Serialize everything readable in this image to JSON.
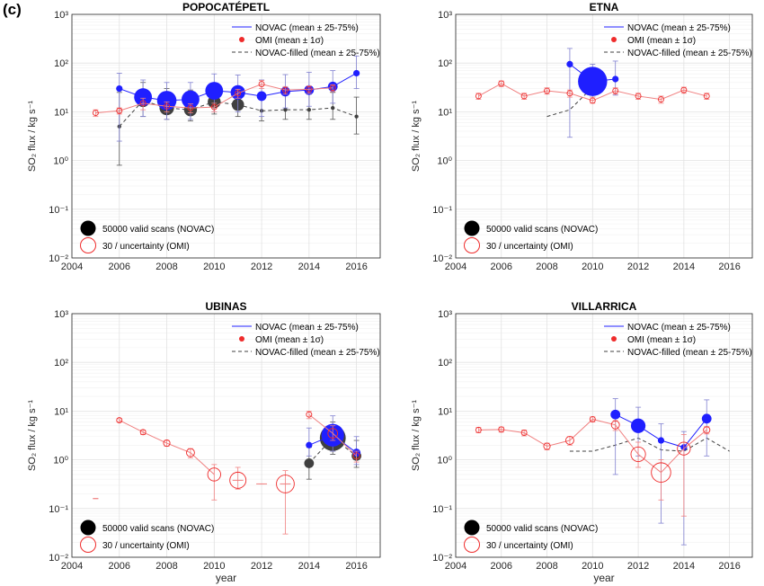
{
  "figure": {
    "panel_label": "(c)"
  },
  "colors": {
    "novac": "#1f1fff",
    "omi": "#ef2b2b",
    "omi_light": "#f08080",
    "filled": "#404040",
    "grid": "#e2e2e2"
  },
  "chart_data": [
    {
      "type": "line",
      "title": "POPOCATÉPETL",
      "xlabel": "",
      "ylabel": "SO₂ flux / kg s⁻¹",
      "x_ticks": [
        "2004",
        "2006",
        "2008",
        "2010",
        "2012",
        "2014",
        "2016"
      ],
      "y_ticks": [
        "10⁻²",
        "10⁻¹",
        "10⁰",
        "10¹",
        "10²",
        "10³"
      ],
      "xlim": [
        2004,
        2017
      ],
      "ylim": [
        0.01,
        1000
      ],
      "yscale": "log",
      "grid": true,
      "legend_top": [
        "NOVAC (mean ± 25-75%)",
        "OMI (mean ± 1σ)",
        "NOVAC-filled (mean ± 25-75%)"
      ],
      "legend_bottom": [
        "50000 valid scans (NOVAC)",
        "30 / uncertainty (OMI)"
      ],
      "series": [
        {
          "kind": "novac",
          "x": [
            2006,
            2007,
            2008,
            2009,
            2010,
            2011,
            2012,
            2013,
            2014,
            2015,
            2016
          ],
          "y": [
            30,
            20,
            17,
            18,
            27,
            25,
            21,
            26,
            28,
            33,
            62
          ],
          "lo": [
            2.5,
            8,
            7,
            7,
            10,
            10,
            8,
            12,
            13,
            15,
            30
          ],
          "hi": [
            62,
            45,
            40,
            40,
            60,
            57,
            45,
            58,
            65,
            70,
            140
          ],
          "size": [
            0.2,
            0.55,
            0.6,
            0.55,
            0.55,
            0.45,
            0.3,
            0.3,
            0.3,
            0.3,
            0.2
          ]
        },
        {
          "kind": "omi",
          "x": [
            2005,
            2006,
            2007,
            2008,
            2009,
            2010,
            2011,
            2012,
            2013,
            2014,
            2015
          ],
          "y": [
            9.5,
            10.5,
            15,
            13,
            12,
            12.5,
            24,
            37,
            28,
            29,
            31
          ],
          "lo": [
            8,
            9,
            11,
            10,
            9.5,
            10,
            19,
            30,
            23,
            24,
            26
          ],
          "hi": [
            11,
            12,
            19,
            16,
            14.5,
            15,
            29,
            44,
            33,
            34,
            36
          ],
          "size": [
            0.15,
            0.15,
            0.15,
            0.15,
            0.15,
            0.15,
            0.15,
            0.15,
            0.15,
            0.15,
            0.15
          ]
        },
        {
          "kind": "filled",
          "x": [
            2006,
            2007,
            2008,
            2009,
            2010,
            2011,
            2012,
            2013,
            2014,
            2015,
            2016
          ],
          "y": [
            5,
            17,
            12,
            11,
            16,
            14,
            10.5,
            11,
            11,
            12,
            8
          ],
          "lo": [
            0.8,
            8,
            7,
            6.5,
            9,
            8,
            6.5,
            7,
            7,
            7,
            3.5
          ],
          "hi": [
            25,
            40,
            30,
            28,
            35,
            30,
            22,
            23,
            23,
            25,
            20
          ],
          "size": [
            0.12,
            0.4,
            0.45,
            0.4,
            0.4,
            0.38,
            0.12,
            0.12,
            0.12,
            0.12,
            0.12
          ]
        }
      ]
    },
    {
      "type": "line",
      "title": "ETNA",
      "xlabel": "",
      "ylabel": "SO₂ flux / kg s⁻¹",
      "x_ticks": [
        "2004",
        "2006",
        "2008",
        "2010",
        "2012",
        "2014",
        "2016"
      ],
      "y_ticks": [
        "10⁻²",
        "10⁻¹",
        "10⁰",
        "10¹",
        "10²",
        "10³"
      ],
      "xlim": [
        2004,
        2017
      ],
      "ylim": [
        0.01,
        1000
      ],
      "yscale": "log",
      "grid": true,
      "legend_top": [
        "NOVAC (mean ± 25-75%)",
        "OMI (mean ± 1σ)",
        "NOVAC-filled (mean ± 25-75%)"
      ],
      "legend_bottom": [
        "50000 valid scans (NOVAC)",
        "30 / uncertainty (OMI)"
      ],
      "series": [
        {
          "kind": "novac",
          "x": [
            2009,
            2010,
            2011
          ],
          "y": [
            95,
            42,
            47
          ],
          "lo": [
            3,
            20,
            22
          ],
          "hi": [
            200,
            95,
            110
          ],
          "size": [
            0.2,
            0.9,
            0.2
          ]
        },
        {
          "kind": "omi",
          "x": [
            2005,
            2006,
            2007,
            2008,
            2009,
            2010,
            2011,
            2012,
            2013,
            2014,
            2015
          ],
          "y": [
            21,
            38,
            21,
            27,
            24,
            17,
            27,
            21,
            18,
            28,
            21
          ],
          "lo": [
            18,
            33,
            18,
            23,
            20,
            15,
            23,
            18,
            15,
            24,
            18
          ],
          "hi": [
            24,
            43,
            24,
            31,
            28,
            20,
            31,
            24,
            21,
            32,
            24
          ],
          "size": [
            0.15,
            0.15,
            0.15,
            0.15,
            0.15,
            0.15,
            0.15,
            0.15,
            0.15,
            0.15,
            0.15
          ]
        },
        {
          "kind": "filled",
          "x": [
            2008,
            2009,
            2010
          ],
          "y": [
            8,
            11,
            32
          ],
          "lo": [],
          "hi": [],
          "size": []
        }
      ]
    },
    {
      "type": "line",
      "title": "UBINAS",
      "xlabel": "year",
      "ylabel": "SO₂ flux / kg s⁻¹",
      "x_ticks": [
        "2004",
        "2006",
        "2008",
        "2010",
        "2012",
        "2014",
        "2016"
      ],
      "y_ticks": [
        "10⁻²",
        "10⁻¹",
        "10⁰",
        "10¹",
        "10²",
        "10³"
      ],
      "xlim": [
        2004,
        2017
      ],
      "ylim": [
        0.01,
        1000
      ],
      "yscale": "log",
      "grid": true,
      "legend_top": [
        "NOVAC (mean ± 25-75%)",
        "OMI (mean ± 1σ)",
        "NOVAC-filled (mean ± 25-75%)"
      ],
      "legend_bottom": [
        "50000 valid scans (NOVAC)",
        "30 / uncertainty (OMI)"
      ],
      "series": [
        {
          "kind": "novac",
          "x": [
            2014,
            2015,
            2016
          ],
          "y": [
            2,
            3.2,
            1.4
          ],
          "lo": [
            1.2,
            1.5,
            0.8
          ],
          "hi": [
            4.5,
            8,
            3
          ],
          "size": [
            0.2,
            0.7,
            0.25
          ]
        },
        {
          "kind": "omi",
          "x": [
            2005,
            2006,
            2007,
            2008,
            2009,
            2010,
            2011,
            2012,
            2013,
            2014,
            2015,
            2016
          ],
          "y": [
            0.16,
            6.5,
            3.7,
            2.2,
            1.4,
            0.5,
            0.38,
            0.32,
            0.32,
            8.5,
            3.5,
            1.2
          ],
          "lo": [
            0.16,
            6,
            3.3,
            1.9,
            1.1,
            0.15,
            0.25,
            0.32,
            0.03,
            7,
            2.5,
            0.9
          ],
          "hi": [
            0.16,
            7,
            4.1,
            2.5,
            1.7,
            0.8,
            0.7,
            0.32,
            0.6,
            10,
            5,
            1.5
          ],
          "size": [
            0.0,
            0.15,
            0.15,
            0.2,
            0.25,
            0.4,
            0.5,
            0.0,
            0.55,
            0.15,
            0.3,
            0.2
          ]
        },
        {
          "kind": "filled",
          "x": [
            2014,
            2015,
            2016
          ],
          "y": [
            0.85,
            2.8,
            1.2
          ],
          "lo": [
            0.4,
            1.3,
            0.7
          ],
          "hi": [
            1.8,
            6,
            2.5
          ],
          "size": [
            0.3,
            0.8,
            0.3
          ]
        }
      ]
    },
    {
      "type": "line",
      "title": "VILLARRICA",
      "xlabel": "year",
      "ylabel": "SO₂ flux / kg s⁻¹",
      "x_ticks": [
        "2004",
        "2006",
        "2008",
        "2010",
        "2012",
        "2014",
        "2016"
      ],
      "y_ticks": [
        "10⁻²",
        "10⁻¹",
        "10⁰",
        "10¹",
        "10²",
        "10³"
      ],
      "xlim": [
        2004,
        2017
      ],
      "ylim": [
        0.01,
        1000
      ],
      "yscale": "log",
      "grid": true,
      "legend_top": [
        "NOVAC (mean ± 25-75%)",
        "OMI (mean ± 1σ)",
        "NOVAC-filled (mean ± 25-75%)"
      ],
      "legend_bottom": [
        "50000 valid scans (NOVAC)",
        "30 / uncertainty (OMI)"
      ],
      "series": [
        {
          "kind": "novac",
          "x": [
            2011,
            2012,
            2013,
            2014,
            2015
          ],
          "y": [
            8.5,
            5,
            2.5,
            1.8,
            7
          ],
          "lo": [
            0.5,
            1.2,
            0.05,
            0.018,
            1.2
          ],
          "hi": [
            18,
            12,
            5.5,
            3.8,
            17
          ],
          "size": [
            0.3,
            0.45,
            0.2,
            0.2,
            0.3
          ]
        },
        {
          "kind": "omi",
          "x": [
            2005,
            2006,
            2007,
            2008,
            2009,
            2010,
            2011,
            2012,
            2013,
            2014,
            2015
          ],
          "y": [
            4.1,
            4.2,
            3.6,
            1.9,
            2.5,
            6.8,
            5.2,
            1.3,
            0.55,
            1.7,
            4.1
          ],
          "lo": [
            3.6,
            3.7,
            3.1,
            1.6,
            2.0,
            6.0,
            4.0,
            0.7,
            0.15,
            0.07,
            3.4
          ],
          "hi": [
            4.6,
            4.7,
            4.1,
            2.2,
            3.0,
            7.6,
            6.4,
            2.3,
            1.0,
            3.3,
            4.8
          ],
          "size": [
            0.15,
            0.15,
            0.15,
            0.2,
            0.25,
            0.15,
            0.25,
            0.45,
            0.6,
            0.4,
            0.2
          ]
        },
        {
          "kind": "filled",
          "x": [
            2009,
            2010,
            2011,
            2012,
            2013,
            2014,
            2015,
            2016
          ],
          "y": [
            1.5,
            1.5,
            2,
            2.8,
            1.6,
            1.5,
            2.8,
            1.5
          ],
          "lo": [],
          "hi": [],
          "size": []
        }
      ]
    }
  ]
}
